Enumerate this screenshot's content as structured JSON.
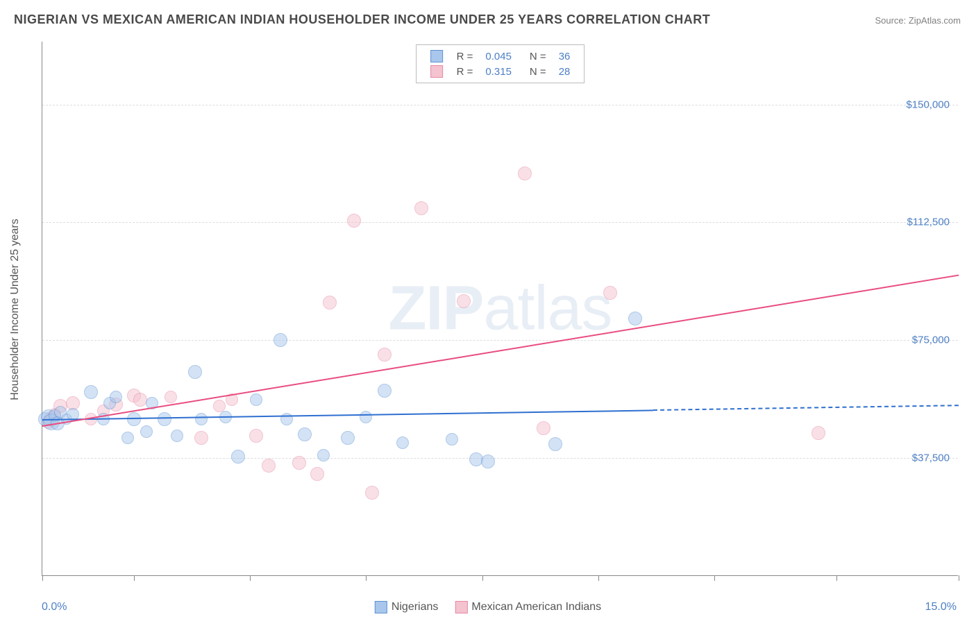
{
  "title": "NIGERIAN VS MEXICAN AMERICAN INDIAN HOUSEHOLDER INCOME UNDER 25 YEARS CORRELATION CHART",
  "source_prefix": "Source: ",
  "source_label": "ZipAtlas.com",
  "y_axis": {
    "label": "Householder Income Under 25 years"
  },
  "x_axis": {
    "min_label": "0.0%",
    "max_label": "15.0%"
  },
  "watermark": {
    "a": "ZIP",
    "b": "atlas"
  },
  "chart": {
    "type": "scatter",
    "xlim": [
      0,
      15
    ],
    "ylim": [
      0,
      170000
    ],
    "y_ticks": [
      {
        "value": 37500,
        "label": "$37,500"
      },
      {
        "value": 75000,
        "label": "$75,000"
      },
      {
        "value": 112500,
        "label": "$112,500"
      },
      {
        "value": 150000,
        "label": "$150,000"
      }
    ],
    "x_tick_positions": [
      0,
      1.5,
      3.4,
      5.3,
      7.2,
      9.1,
      11.0,
      13.0,
      15.0
    ],
    "background_color": "#ffffff",
    "grid_color": "#dddddd",
    "axis_color": "#888888",
    "tick_label_color": "#4d7fc5",
    "marker_radius_base": 9,
    "marker_opacity": 0.5
  },
  "series": {
    "nigerians": {
      "label": "Nigerians",
      "color_fill": "#a9c7ec",
      "color_stroke": "#5e92d3",
      "trend_color": "#2e6fd0",
      "stats": {
        "r": "0.045",
        "n": "36"
      },
      "trend": {
        "x1": 0.0,
        "y1": 50000,
        "x2": 10.0,
        "y2": 53000,
        "x2_extrap": 15.0,
        "y2_extrap": 54500
      },
      "points": [
        {
          "x": 0.05,
          "y": 50000,
          "r": 10
        },
        {
          "x": 0.1,
          "y": 50500,
          "r": 11
        },
        {
          "x": 0.15,
          "y": 49000,
          "r": 12
        },
        {
          "x": 0.2,
          "y": 51000,
          "r": 9
        },
        {
          "x": 0.25,
          "y": 48500,
          "r": 10
        },
        {
          "x": 0.3,
          "y": 52000,
          "r": 9
        },
        {
          "x": 0.4,
          "y": 50000,
          "r": 8
        },
        {
          "x": 0.5,
          "y": 51500,
          "r": 9
        },
        {
          "x": 0.8,
          "y": 58500,
          "r": 10
        },
        {
          "x": 1.0,
          "y": 50000,
          "r": 9
        },
        {
          "x": 1.1,
          "y": 55000,
          "r": 9
        },
        {
          "x": 1.2,
          "y": 57000,
          "r": 9
        },
        {
          "x": 1.4,
          "y": 44000,
          "r": 9
        },
        {
          "x": 1.5,
          "y": 50000,
          "r": 10
        },
        {
          "x": 1.7,
          "y": 46000,
          "r": 9
        },
        {
          "x": 1.8,
          "y": 55000,
          "r": 9
        },
        {
          "x": 2.0,
          "y": 50000,
          "r": 10
        },
        {
          "x": 2.2,
          "y": 44500,
          "r": 9
        },
        {
          "x": 2.5,
          "y": 65000,
          "r": 10
        },
        {
          "x": 2.6,
          "y": 50000,
          "r": 9
        },
        {
          "x": 3.0,
          "y": 50500,
          "r": 9
        },
        {
          "x": 3.2,
          "y": 38000,
          "r": 10
        },
        {
          "x": 3.5,
          "y": 56000,
          "r": 9
        },
        {
          "x": 3.9,
          "y": 75000,
          "r": 10
        },
        {
          "x": 4.0,
          "y": 50000,
          "r": 9
        },
        {
          "x": 4.3,
          "y": 45000,
          "r": 10
        },
        {
          "x": 4.6,
          "y": 38500,
          "r": 9
        },
        {
          "x": 5.0,
          "y": 44000,
          "r": 10
        },
        {
          "x": 5.3,
          "y": 50500,
          "r": 9
        },
        {
          "x": 5.6,
          "y": 59000,
          "r": 10
        },
        {
          "x": 5.9,
          "y": 42500,
          "r": 9
        },
        {
          "x": 6.7,
          "y": 43500,
          "r": 9
        },
        {
          "x": 7.1,
          "y": 37000,
          "r": 10
        },
        {
          "x": 7.3,
          "y": 36500,
          "r": 10
        },
        {
          "x": 8.4,
          "y": 42000,
          "r": 10
        },
        {
          "x": 9.7,
          "y": 82000,
          "r": 10
        }
      ]
    },
    "mexican": {
      "label": "Mexican American Indians",
      "color_fill": "#f4c3cf",
      "color_stroke": "#e689a3",
      "trend_color": "#e94c7f",
      "stats": {
        "r": "0.315",
        "n": "28"
      },
      "trend": {
        "x1": 0.0,
        "y1": 48000,
        "x2": 15.0,
        "y2": 96000
      },
      "points": [
        {
          "x": 0.1,
          "y": 49000,
          "r": 10
        },
        {
          "x": 0.15,
          "y": 50000,
          "r": 11
        },
        {
          "x": 0.2,
          "y": 51500,
          "r": 9
        },
        {
          "x": 0.3,
          "y": 54000,
          "r": 10
        },
        {
          "x": 0.5,
          "y": 55000,
          "r": 10
        },
        {
          "x": 0.8,
          "y": 50000,
          "r": 9
        },
        {
          "x": 1.0,
          "y": 52500,
          "r": 9
        },
        {
          "x": 1.2,
          "y": 54500,
          "r": 10
        },
        {
          "x": 1.5,
          "y": 57500,
          "r": 10
        },
        {
          "x": 1.6,
          "y": 56000,
          "r": 10
        },
        {
          "x": 2.1,
          "y": 57000,
          "r": 9
        },
        {
          "x": 2.6,
          "y": 44000,
          "r": 10
        },
        {
          "x": 2.9,
          "y": 54000,
          "r": 9
        },
        {
          "x": 3.1,
          "y": 56000,
          "r": 9
        },
        {
          "x": 3.5,
          "y": 44500,
          "r": 10
        },
        {
          "x": 3.7,
          "y": 35000,
          "r": 10
        },
        {
          "x": 4.2,
          "y": 36000,
          "r": 10
        },
        {
          "x": 4.5,
          "y": 32500,
          "r": 10
        },
        {
          "x": 4.7,
          "y": 87000,
          "r": 10
        },
        {
          "x": 5.1,
          "y": 113000,
          "r": 10
        },
        {
          "x": 5.4,
          "y": 26500,
          "r": 10
        },
        {
          "x": 5.6,
          "y": 70500,
          "r": 10
        },
        {
          "x": 6.2,
          "y": 117000,
          "r": 10
        },
        {
          "x": 6.9,
          "y": 87500,
          "r": 10
        },
        {
          "x": 7.9,
          "y": 128000,
          "r": 10
        },
        {
          "x": 8.2,
          "y": 47000,
          "r": 10
        },
        {
          "x": 9.3,
          "y": 90000,
          "r": 10
        },
        {
          "x": 12.7,
          "y": 45500,
          "r": 10
        }
      ]
    }
  },
  "legend_labels": {
    "r_label": "R =",
    "n_label": "N ="
  },
  "bottom_legend": {
    "a": "Nigerians",
    "b": "Mexican American Indians"
  }
}
